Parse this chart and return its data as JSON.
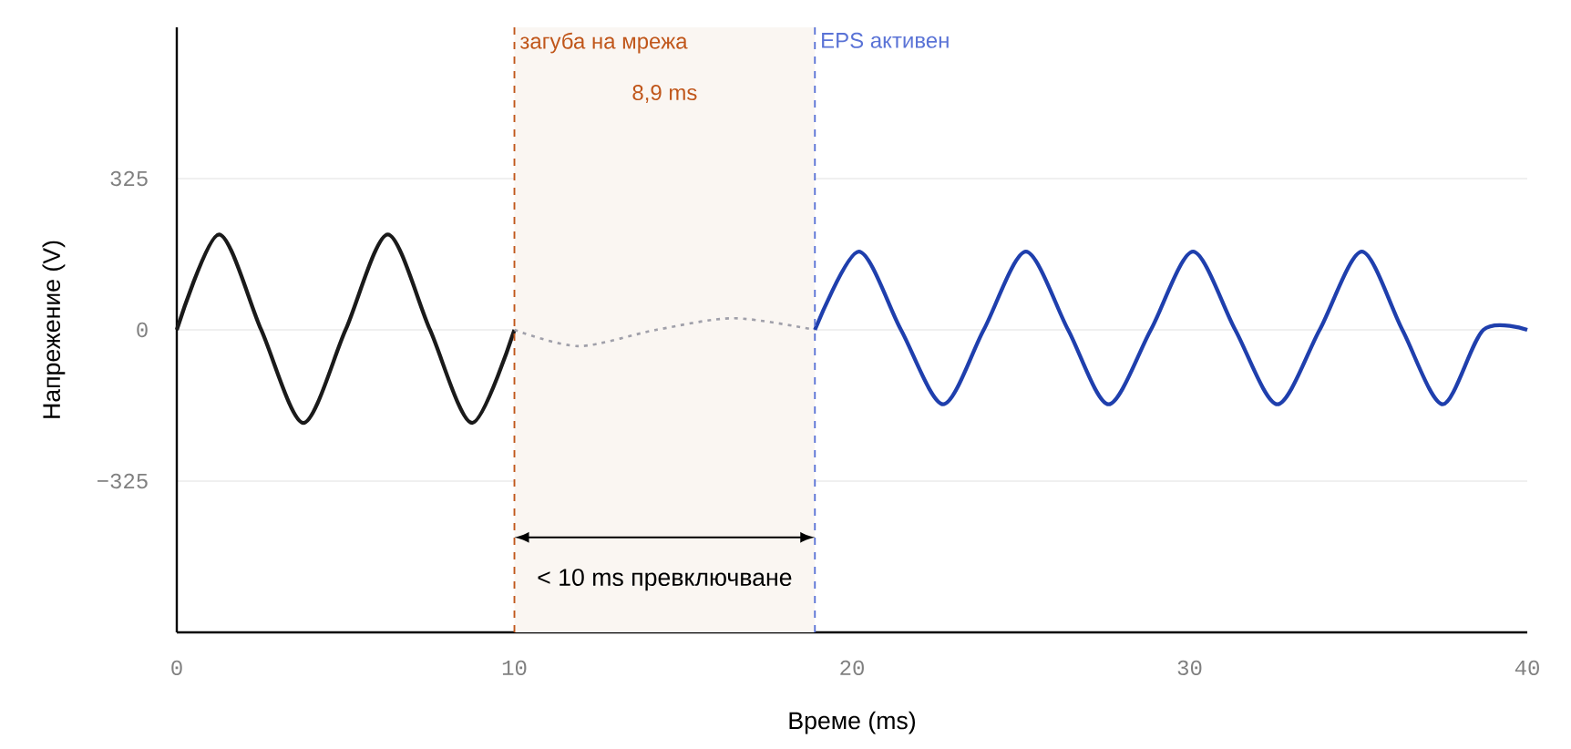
{
  "chart_data": {
    "type": "line",
    "xlabel": "Време (ms)",
    "ylabel": "Напрежение (V)",
    "xlim": [
      0,
      40
    ],
    "ylim": [
      -650,
      650
    ],
    "xticks": [
      0,
      10,
      20,
      30,
      40
    ],
    "yticks": [
      {
        "value": -325,
        "label": "−325"
      },
      0,
      325
    ],
    "grid": "y",
    "series": [
      {
        "color": "#1a1a1a",
        "line_style": "solid",
        "x": [
          0,
          1.25,
          2.5,
          3.75,
          5,
          6.25,
          7.5,
          8.75,
          10
        ],
        "values": [
          0,
          205,
          0,
          -200,
          0,
          205,
          0,
          -200,
          0
        ]
      },
      {
        "color": "#a0a0aa",
        "line_style": "dotted",
        "x": [
          10,
          11.9,
          14.2,
          16.5,
          18.9
        ],
        "values": [
          0,
          -35,
          0,
          25,
          0
        ]
      },
      {
        "color": "#1f3fad",
        "line_style": "solid",
        "x": [
          18.9,
          20.2,
          21.45,
          22.7,
          23.9,
          25.15,
          26.4,
          27.6,
          28.85,
          30.1,
          31.35,
          32.6,
          33.85,
          35.1,
          36.3,
          37.5,
          38.7,
          40
        ],
        "values": [
          0,
          168,
          0,
          -160,
          0,
          168,
          0,
          -160,
          0,
          168,
          0,
          -160,
          0,
          168,
          0,
          -160,
          0,
          0
        ]
      }
    ],
    "ref_lines": [
      {
        "axis": "x",
        "value": 10,
        "label": "загуба на мрежа",
        "color": "#c0561a",
        "line_style": "dashed"
      },
      {
        "axis": "x",
        "value": 18.9,
        "label": "EPS активен",
        "color": "#5a73d6",
        "line_style": "dashed"
      }
    ],
    "bands": [
      {
        "axis": "x",
        "from": 10,
        "to": 18.9,
        "label": "8,9 ms",
        "color": "#faf6f2"
      }
    ],
    "annotations": [
      "< 10 ms превключване"
    ]
  }
}
